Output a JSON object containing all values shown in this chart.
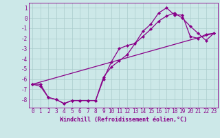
{
  "background_color": "#cce8e8",
  "grid_color": "#aacccc",
  "line_color": "#880088",
  "marker": "D",
  "markersize": 2.5,
  "linewidth": 0.9,
  "xlabel": "Windchill (Refroidissement éolien,°C)",
  "xlabel_fontsize": 6,
  "tick_fontsize": 5.5,
  "xlim": [
    -0.5,
    23.5
  ],
  "ylim": [
    -8.8,
    1.5
  ],
  "yticks": [
    1,
    0,
    -1,
    -2,
    -3,
    -4,
    -5,
    -6,
    -7,
    -8
  ],
  "xticks": [
    0,
    1,
    2,
    3,
    4,
    5,
    6,
    7,
    8,
    9,
    10,
    11,
    12,
    13,
    14,
    15,
    16,
    17,
    18,
    19,
    20,
    21,
    22,
    23
  ],
  "line1_x": [
    0,
    1,
    2,
    3,
    4,
    5,
    6,
    7,
    8,
    9,
    10,
    11,
    12,
    13,
    14,
    15,
    16,
    17,
    18,
    19,
    20,
    21,
    22,
    23
  ],
  "line1_y": [
    -6.5,
    -6.7,
    -7.8,
    -8.0,
    -8.4,
    -8.1,
    -8.1,
    -8.1,
    -8.1,
    -6.0,
    -4.3,
    -3.0,
    -2.7,
    -2.5,
    -1.3,
    -0.6,
    0.5,
    1.0,
    0.3,
    0.3,
    -1.8,
    -2.0,
    -1.6,
    -1.5
  ],
  "line2_x": [
    0,
    1,
    2,
    3,
    4,
    5,
    6,
    7,
    8,
    9,
    10,
    11,
    12,
    13,
    14,
    15,
    16,
    17,
    18,
    19,
    20,
    21,
    22,
    23
  ],
  "line2_y": [
    -6.5,
    -6.5,
    -7.8,
    -8.0,
    -8.4,
    -8.1,
    -8.1,
    -8.1,
    -8.1,
    -5.8,
    -4.8,
    -4.2,
    -3.6,
    -2.5,
    -1.8,
    -1.1,
    -0.3,
    0.2,
    0.5,
    0.0,
    -0.8,
    -1.5,
    -2.2,
    -1.5
  ],
  "line3_x": [
    0,
    23
  ],
  "line3_y": [
    -6.5,
    -1.5
  ]
}
